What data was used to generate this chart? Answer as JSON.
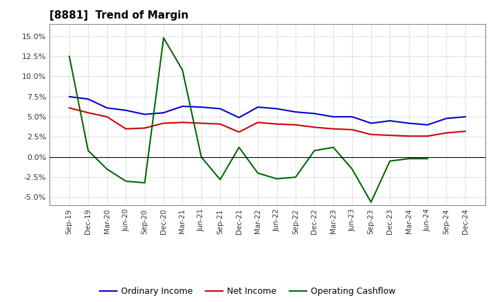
{
  "title": "[8881]  Trend of Margin",
  "title_fontsize": 11,
  "title_fontweight": "bold",
  "background_color": "#ffffff",
  "plot_bg_color": "#ffffff",
  "grid_color": "#999999",
  "xlabels": [
    "Sep-19",
    "Dec-19",
    "Mar-20",
    "Jun-20",
    "Sep-20",
    "Dec-20",
    "Mar-21",
    "Jun-21",
    "Sep-21",
    "Dec-21",
    "Mar-22",
    "Jun-22",
    "Sep-22",
    "Dec-22",
    "Mar-23",
    "Jun-23",
    "Sep-23",
    "Dec-23",
    "Mar-24",
    "Jun-24",
    "Sep-24",
    "Dec-24"
  ],
  "ordinary_income": [
    7.5,
    7.2,
    6.1,
    5.8,
    5.3,
    5.5,
    6.3,
    6.2,
    6.0,
    4.9,
    6.2,
    6.0,
    5.6,
    5.4,
    5.0,
    5.0,
    4.2,
    4.5,
    4.2,
    4.0,
    4.8,
    5.0
  ],
  "net_income": [
    6.1,
    5.5,
    5.0,
    3.5,
    3.6,
    4.2,
    4.3,
    4.2,
    4.1,
    3.1,
    4.3,
    4.1,
    4.0,
    3.7,
    3.5,
    3.4,
    2.8,
    2.7,
    2.6,
    2.6,
    3.0,
    3.2
  ],
  "operating_cf": [
    12.5,
    0.8,
    null,
    null,
    -3.2,
    14.8,
    10.8,
    null,
    null,
    1.2,
    null,
    -2.7,
    -2.5,
    0.8,
    1.2,
    null,
    -5.6,
    -0.5,
    null,
    -0.2,
    null,
    null
  ],
  "ylim_min": -6.0,
  "ylim_max": 16.5,
  "yticks": [
    -5.0,
    -2.5,
    0.0,
    2.5,
    5.0,
    7.5,
    10.0,
    12.5,
    15.0
  ],
  "line_colors": {
    "ordinary_income": "#0000cc",
    "net_income": "#cc0000",
    "operating_cf": "#006600"
  },
  "legend_labels": [
    "Ordinary Income",
    "Net Income",
    "Operating Cashflow"
  ]
}
